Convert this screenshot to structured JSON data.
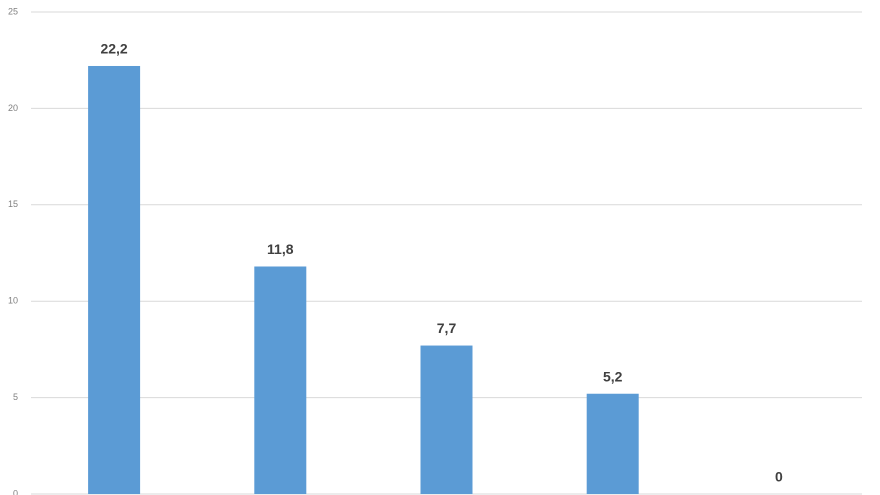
{
  "chart_data": {
    "type": "bar",
    "categories": [
      null,
      null,
      null,
      null,
      null
    ],
    "values": [
      22.2,
      11.8,
      7.7,
      5.2,
      0
    ],
    "value_labels": [
      "22,2",
      "11,8",
      "7,7",
      "5,2",
      "0"
    ],
    "color": "#5b9bd5",
    "ylim": [
      0,
      25
    ],
    "yticks": [
      0,
      5,
      10,
      15,
      20,
      25
    ],
    "grid": true
  }
}
